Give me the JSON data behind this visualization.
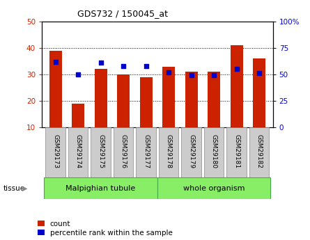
{
  "title": "GDS732 / 150045_at",
  "samples": [
    "GSM29173",
    "GSM29174",
    "GSM29175",
    "GSM29176",
    "GSM29177",
    "GSM29178",
    "GSM29179",
    "GSM29180",
    "GSM29181",
    "GSM29182"
  ],
  "counts": [
    39,
    19,
    32,
    30,
    29,
    33,
    31,
    31,
    41,
    36
  ],
  "percentiles": [
    62,
    50,
    61,
    58,
    58,
    52,
    49,
    49,
    55,
    51
  ],
  "count_min": 10,
  "left_ylim": [
    10,
    50
  ],
  "left_yticks": [
    10,
    20,
    30,
    40,
    50
  ],
  "right_ylim": [
    0,
    100
  ],
  "right_yticks": [
    0,
    25,
    50,
    75,
    100
  ],
  "right_yticklabels": [
    "0",
    "25",
    "50",
    "75",
    "100%"
  ],
  "bar_color": "#cc2200",
  "dot_color": "#0000cc",
  "tissue_groups": [
    {
      "label": "Malpighian tubule",
      "start": 0,
      "end": 5
    },
    {
      "label": "whole organism",
      "start": 5,
      "end": 10
    }
  ],
  "tissue_color": "#88ee66",
  "tissue_border_color": "#44aa44",
  "tick_label_bg": "#cccccc",
  "grid_color": "#000000",
  "background_color": "#ffffff",
  "bar_width": 0.55,
  "legend_count_label": "count",
  "legend_pct_label": "percentile rank within the sample"
}
